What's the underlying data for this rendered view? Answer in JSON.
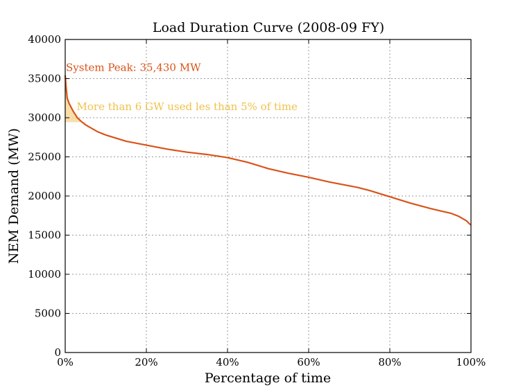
{
  "chart_data": {
    "type": "line",
    "title": "Load Duration Curve (2008-09 FY)",
    "xlabel": "Percentage of time",
    "ylabel": "NEM Demand (MW)",
    "xlim": [
      0,
      100
    ],
    "ylim": [
      0,
      40000
    ],
    "x_ticks": [
      0,
      20,
      40,
      60,
      80,
      100
    ],
    "x_tick_labels": [
      "0%",
      "20%",
      "40%",
      "60%",
      "80%",
      "100%"
    ],
    "y_ticks": [
      0,
      5000,
      10000,
      15000,
      20000,
      25000,
      30000,
      35000,
      40000
    ],
    "y_tick_labels": [
      "0",
      "5000",
      "10000",
      "15000",
      "20000",
      "25000",
      "30000",
      "35000",
      "40000"
    ],
    "grid": true,
    "colors": {
      "curve": "#d95319",
      "band": "#f5d48e",
      "band_text": "#f0c14b"
    },
    "series": [
      {
        "x": [
          0,
          0.2,
          0.5,
          1,
          2,
          3,
          4,
          5,
          6,
          8,
          10,
          15,
          20,
          25,
          30,
          35,
          40,
          45,
          50,
          55,
          60,
          65,
          70,
          72,
          75,
          80,
          85,
          90,
          95,
          97,
          98,
          99,
          99.5,
          100
        ],
        "y": [
          35430,
          34000,
          32500,
          31800,
          30800,
          30000,
          29500,
          29100,
          28800,
          28200,
          27800,
          27000,
          26500,
          26000,
          25600,
          25300,
          24900,
          24300,
          23500,
          22900,
          22400,
          21800,
          21300,
          21100,
          20700,
          19900,
          19100,
          18400,
          17800,
          17400,
          17100,
          16800,
          16500,
          16300
        ]
      }
    ],
    "shaded_region": {
      "x": [
        0,
        0.2,
        0.5,
        1,
        2,
        3,
        4,
        5
      ],
      "y_top": [
        35430,
        34000,
        32500,
        31800,
        30800,
        30000,
        29500,
        29100
      ],
      "y_bottom": 29430
    },
    "annotations": [
      {
        "text": "System Peak: 35,430 MW",
        "x": 0,
        "y": 36500
      },
      {
        "text": "More than 6 GW used les than 5% of time",
        "x": 3,
        "y": 31500
      }
    ]
  }
}
